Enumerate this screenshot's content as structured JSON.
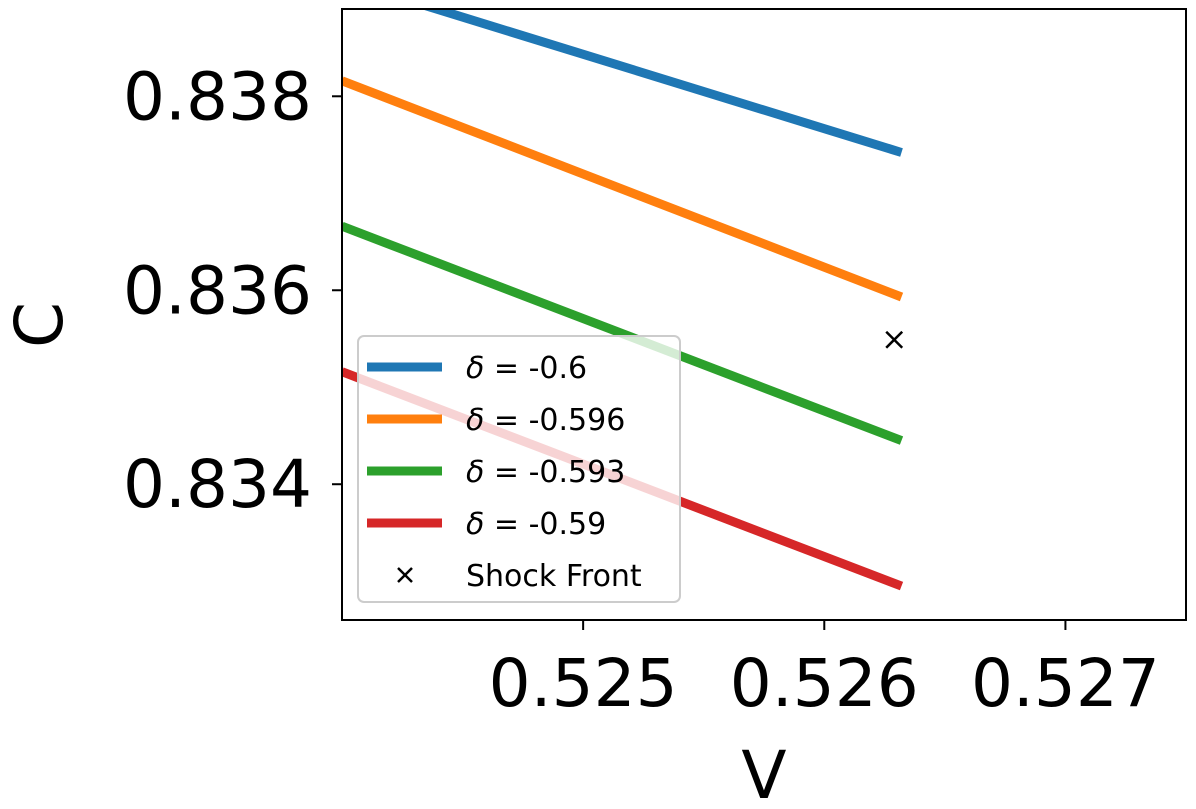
{
  "chart_data": {
    "type": "line",
    "xlabel": "V",
    "ylabel": "C",
    "xlim": [
      0.524,
      0.5275
    ],
    "ylim": [
      0.8326,
      0.8389
    ],
    "x_ticks": [
      0.525,
      0.526,
      0.527
    ],
    "x_tick_labels": [
      "0.525",
      "0.526",
      "0.527"
    ],
    "y_ticks": [
      0.834,
      0.836,
      0.838
    ],
    "y_tick_labels": [
      "0.834",
      "0.836",
      "0.838"
    ],
    "grid": false,
    "legend_position": "lower-left",
    "series": [
      {
        "name": "δ = -0.6",
        "color": "#1f77b4",
        "x": [
          0.524,
          0.52632
        ],
        "y": [
          0.8392,
          0.83742
        ]
      },
      {
        "name": "δ = -0.596",
        "color": "#ff7f0e",
        "x": [
          0.524,
          0.52632
        ],
        "y": [
          0.83816,
          0.83593
        ]
      },
      {
        "name": "δ = -0.593",
        "color": "#2ca02c",
        "x": [
          0.524,
          0.52632
        ],
        "y": [
          0.83666,
          0.83445
        ]
      },
      {
        "name": "δ = -0.59",
        "color": "#d62728",
        "x": [
          0.524,
          0.52632
        ],
        "y": [
          0.83516,
          0.83295
        ]
      }
    ],
    "markers": [
      {
        "name": "Shock Front",
        "symbol": "x",
        "color": "#000000",
        "x": 0.52629,
        "y": 0.83549
      }
    ]
  }
}
